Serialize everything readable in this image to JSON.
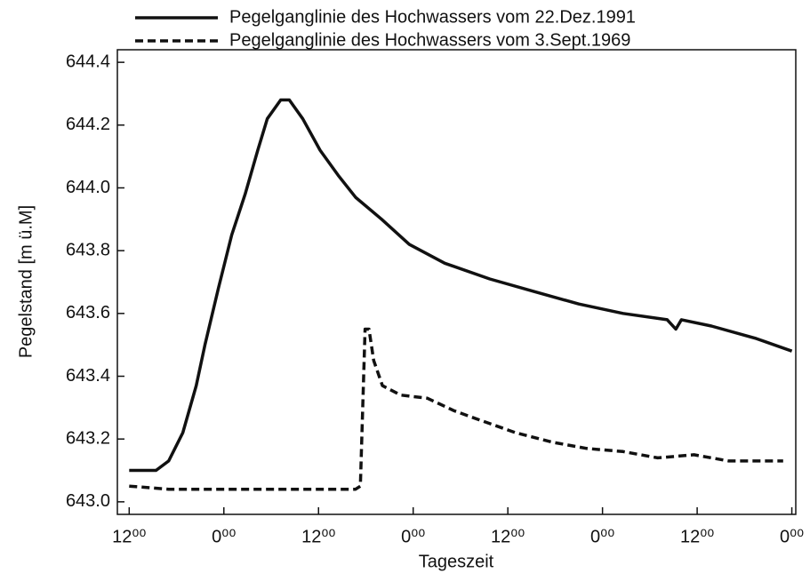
{
  "chart_data": {
    "type": "line",
    "x_label": "Tageszeit",
    "y_label": "Pegelstand [m ü.M]",
    "xlim": [
      -1.5,
      84.5
    ],
    "xticks": [
      {
        "value": 0,
        "label": "12⁰⁰"
      },
      {
        "value": 12,
        "label": "0⁰⁰"
      },
      {
        "value": 24,
        "label": "12⁰⁰"
      },
      {
        "value": 36,
        "label": "0⁰⁰"
      },
      {
        "value": 48,
        "label": "12⁰⁰"
      },
      {
        "value": 60,
        "label": "0⁰⁰"
      },
      {
        "value": 72,
        "label": "12⁰⁰"
      },
      {
        "value": 84,
        "label": "0⁰⁰"
      }
    ],
    "ylim": [
      642.96,
      644.44
    ],
    "yticks": [
      {
        "value": 643.0,
        "label": "643.0"
      },
      643.2,
      643.4,
      643.6,
      643.8,
      {
        "value": 644.0,
        "label": "644.0"
      },
      644.2,
      644.4
    ],
    "series": [
      {
        "name": "Pegelganglinie des Hochwassers vom 22.Dez.1991",
        "color": "#111111",
        "dash": "solid",
        "x": [
          0,
          3.4,
          5,
          6.8,
          8.5,
          9.6,
          11.3,
          13,
          14.7,
          16.3,
          17.5,
          19.2,
          20.3,
          22,
          24.2,
          26.5,
          28.7,
          32,
          35.5,
          40,
          45.7,
          51.3,
          57,
          62.6,
          68.2,
          69.3,
          70,
          73.8,
          79.5,
          84
        ],
        "values": [
          643.1,
          643.1,
          643.13,
          643.22,
          643.37,
          643.5,
          643.68,
          643.85,
          643.98,
          644.12,
          644.22,
          644.28,
          644.28,
          644.22,
          644.12,
          644.04,
          643.97,
          643.9,
          643.82,
          643.76,
          643.71,
          643.67,
          643.63,
          643.6,
          643.58,
          643.55,
          643.58,
          643.56,
          643.52,
          643.48
        ]
      },
      {
        "name": "Pegelganglinie des Hochwassers vom 3.Sept.1969",
        "color": "#111111",
        "dash": "dashed",
        "x": [
          0,
          5,
          10,
          20,
          28.7,
          29.3,
          29.9,
          30.4,
          31,
          32.1,
          34.4,
          37.8,
          41.2,
          44.5,
          49,
          53.6,
          58,
          62.6,
          67,
          71.6,
          76,
          82.9
        ],
        "values": [
          643.05,
          643.04,
          643.04,
          643.04,
          643.04,
          643.05,
          643.55,
          643.55,
          643.45,
          643.37,
          643.34,
          643.33,
          643.29,
          643.26,
          643.22,
          643.19,
          643.17,
          643.16,
          643.14,
          643.15,
          643.13,
          643.13
        ]
      }
    ]
  }
}
